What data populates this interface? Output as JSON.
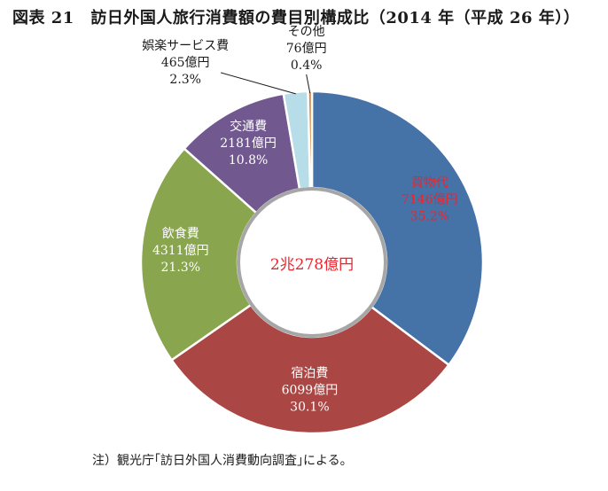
{
  "title": "図表 21　訪日外国人旅行消費額の費目別構成比（2014 年（平成 26 年））",
  "note": "注）観光庁｢訪日外国人消費動向調査｣による。",
  "chart_data": {
    "type": "pie",
    "center_label": "2兆278億円",
    "center_label_color": "#e8262f",
    "categories": [
      "買物代",
      "宿泊費",
      "飲食費",
      "交通費",
      "娯楽サービス費",
      "その他"
    ],
    "values": [
      7146,
      6099,
      4311,
      2181,
      465,
      76
    ],
    "value_labels": [
      "7146億円",
      "6099億円",
      "4311億円",
      "2181億円",
      "465億円",
      "76億円"
    ],
    "percent_labels": [
      "35.2%",
      "30.1%",
      "21.3%",
      "10.8%",
      "2.3%",
      "0.4%"
    ],
    "colors": [
      "#4572a7",
      "#aa4643",
      "#89a54e",
      "#71588f",
      "#b7dde8",
      "#db843d"
    ],
    "label_colors": [
      "#e8262f",
      "#ffffff",
      "#ffffff",
      "#ffffff",
      "#1a1a1a",
      "#1a1a1a"
    ]
  }
}
